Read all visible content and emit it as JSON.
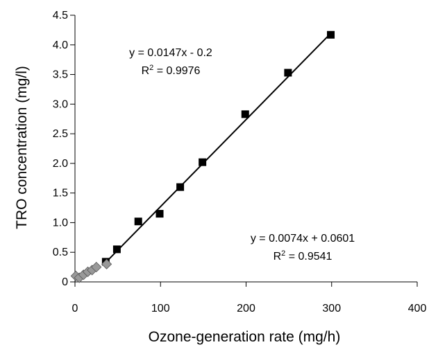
{
  "chart_data": {
    "type": "scatter",
    "xlabel": "Ozone-generation rate (mg/h)",
    "ylabel": "TRO concentration (mg/l)",
    "xlim": [
      0,
      400
    ],
    "ylim": [
      0,
      4.5
    ],
    "x_ticks": [
      0,
      100,
      200,
      300,
      400
    ],
    "x_tick_labels": [
      "0",
      "100",
      "200",
      "300",
      "400"
    ],
    "y_ticks": [
      0,
      0.5,
      1.0,
      1.5,
      2.0,
      2.5,
      3.0,
      3.5,
      4.0,
      4.5
    ],
    "y_tick_labels": [
      "0",
      "0.5",
      "1.0",
      "1.5",
      "2.0",
      "2.5",
      "3.0",
      "3.5",
      "4.0",
      "4.5"
    ],
    "grid": false,
    "series": [
      {
        "marker": "square",
        "color": "#000000",
        "x": [
          36,
          49,
          74,
          99,
          123,
          149,
          199,
          249,
          299
        ],
        "y": [
          0.34,
          0.55,
          1.02,
          1.15,
          1.6,
          2.02,
          2.83,
          3.53,
          4.17
        ]
      },
      {
        "marker": "diamond",
        "color": "#999999",
        "x": [
          1,
          5,
          10,
          15,
          20,
          25,
          37
        ],
        "y": [
          0.1,
          0.07,
          0.12,
          0.17,
          0.2,
          0.25,
          0.3
        ]
      }
    ],
    "fit_line": {
      "slope": 0.0147,
      "intercept": -0.2,
      "x_range": [
        36,
        300
      ]
    },
    "annotations": [
      {
        "eq": "y = 0.0147x - 0.2",
        "r2_prefix": "R",
        "r2_sup": "2",
        "r2_value": " = 0.9976"
      },
      {
        "eq": "y = 0.0074x + 0.0601",
        "r2_prefix": "R",
        "r2_sup": "2",
        "r2_value": " = 0.9541"
      }
    ]
  }
}
